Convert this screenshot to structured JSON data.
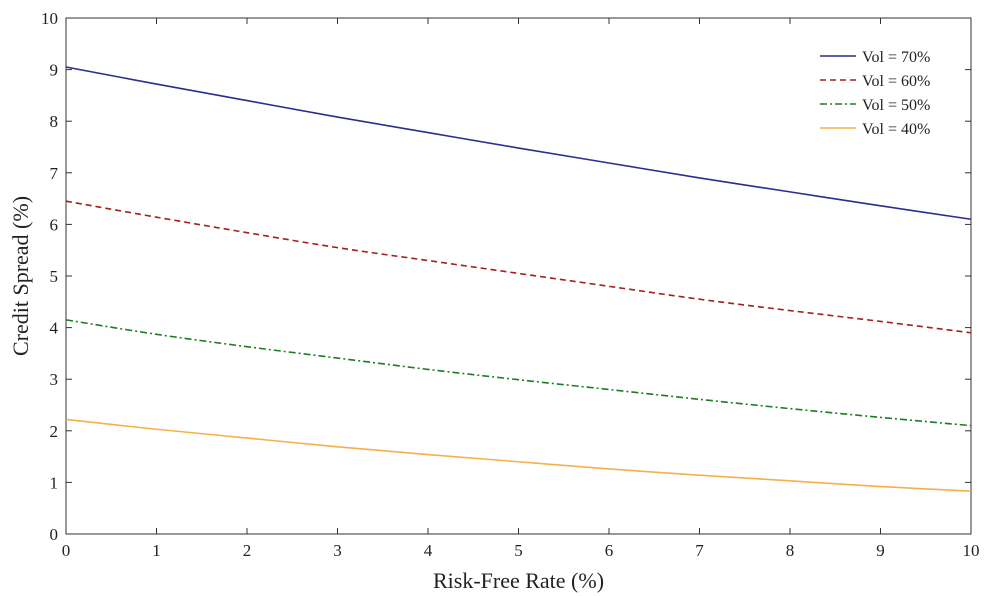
{
  "chart_data": {
    "type": "line",
    "xlabel": "Risk-Free Rate (%)",
    "ylabel": "Credit Spread (%)",
    "xlim": [
      0,
      10
    ],
    "ylim": [
      0,
      10
    ],
    "xticks": [
      0,
      1,
      2,
      3,
      4,
      5,
      6,
      7,
      8,
      9,
      10
    ],
    "yticks": [
      0,
      1,
      2,
      3,
      4,
      5,
      6,
      7,
      8,
      9,
      10
    ],
    "grid": false,
    "legend_position": "top-right",
    "x": [
      0,
      1,
      2,
      3,
      4,
      5,
      6,
      7,
      8,
      9,
      10
    ],
    "series": [
      {
        "name": "Vol = 70%",
        "color": "#2b2e8c",
        "dash": "solid",
        "values": [
          9.05,
          8.72,
          8.4,
          8.08,
          7.78,
          7.48,
          7.19,
          6.9,
          6.63,
          6.36,
          6.1
        ]
      },
      {
        "name": "Vol = 60%",
        "color": "#a32020",
        "dash": "dashed",
        "values": [
          6.45,
          6.14,
          5.84,
          5.55,
          5.3,
          5.05,
          4.8,
          4.55,
          4.33,
          4.12,
          3.9
        ]
      },
      {
        "name": "Vol = 50%",
        "color": "#1e7d1e",
        "dash": "dashdot",
        "values": [
          4.15,
          3.87,
          3.63,
          3.41,
          3.19,
          2.99,
          2.8,
          2.61,
          2.43,
          2.26,
          2.1
        ]
      },
      {
        "name": "Vol = 40%",
        "color": "#f5b04c",
        "dash": "solid",
        "values": [
          2.22,
          2.03,
          1.86,
          1.69,
          1.54,
          1.4,
          1.26,
          1.14,
          1.03,
          0.92,
          0.83
        ]
      }
    ]
  }
}
